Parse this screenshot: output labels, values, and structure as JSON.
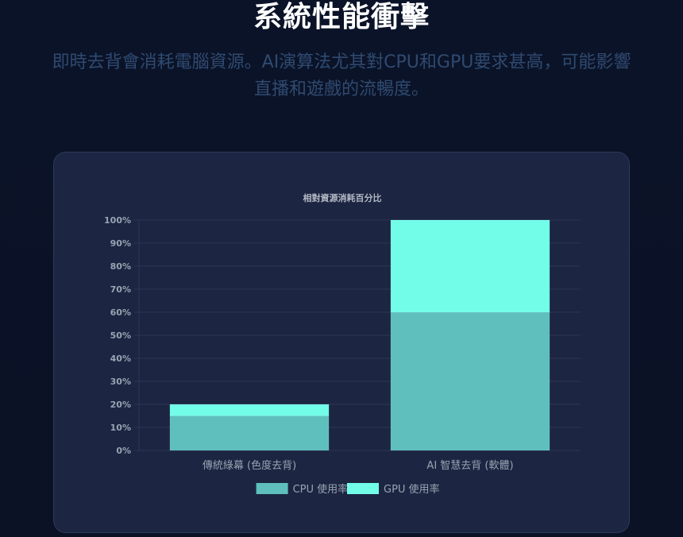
{
  "header": {
    "title": "系統性能衝擊",
    "subtitle": "即時去背會消耗電腦資源。AI演算法尤其對CPU和GPU要求甚高，可能影響直播和遊戲的流暢度。"
  },
  "colors": {
    "cpu": "#5ebfbd",
    "gpu": "#72fde9",
    "card": "#1c2541",
    "grid": "#2c3654",
    "tick": "#9aa3b2"
  },
  "chart_data": {
    "type": "bar",
    "stacked": true,
    "title": "相對資源消耗百分比",
    "categories": [
      "傳統綠幕 (色度去背)",
      "AI 智慧去背 (軟體)"
    ],
    "series": [
      {
        "name": "CPU 使用率",
        "values": [
          15,
          60
        ],
        "color": "#5ebfbd"
      },
      {
        "name": "GPU 使用率",
        "values": [
          5,
          40
        ],
        "color": "#72fde9"
      }
    ],
    "ylim": [
      0,
      100
    ],
    "yticks": [
      "0%",
      "10%",
      "20%",
      "30%",
      "40%",
      "50%",
      "60%",
      "70%",
      "80%",
      "90%",
      "100%"
    ],
    "grid": true,
    "legend": "bottom"
  }
}
